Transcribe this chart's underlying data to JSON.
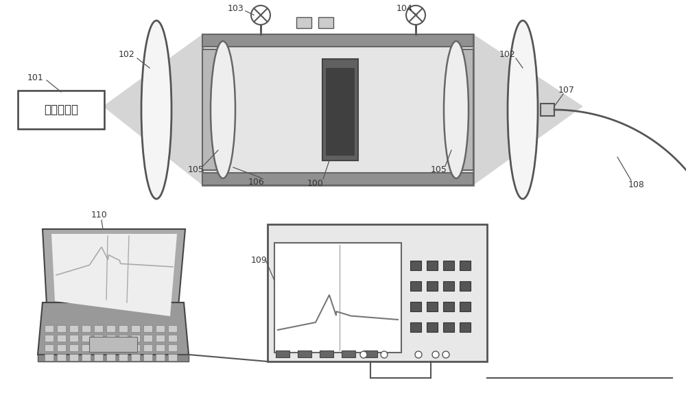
{
  "bg_color": "#ffffff",
  "fig_w": 10.0,
  "fig_h": 5.89,
  "beam_color": "#c8c8c8",
  "cell_fill": "#e0e0e0",
  "cell_border": "#888888",
  "cell_dark": "#888888",
  "lens_fill": "#f2f2f2",
  "lens_edge": "#666666",
  "window_fill": "#c0c0c0",
  "sample_fill": "#585858",
  "sample_inner": "#383838",
  "valve_fill": "#ffffff",
  "connector_fill": "#d0d0d0",
  "source_text": "卤销灯光源",
  "label_fs": 9,
  "line_color": "#555555",
  "spec_fill": "#e0e0e0",
  "spec_border": "#555555",
  "screen_fill": "#ffffff",
  "btn_fill": "#555555",
  "wave_color": "#666666",
  "cable_color": "#555555"
}
